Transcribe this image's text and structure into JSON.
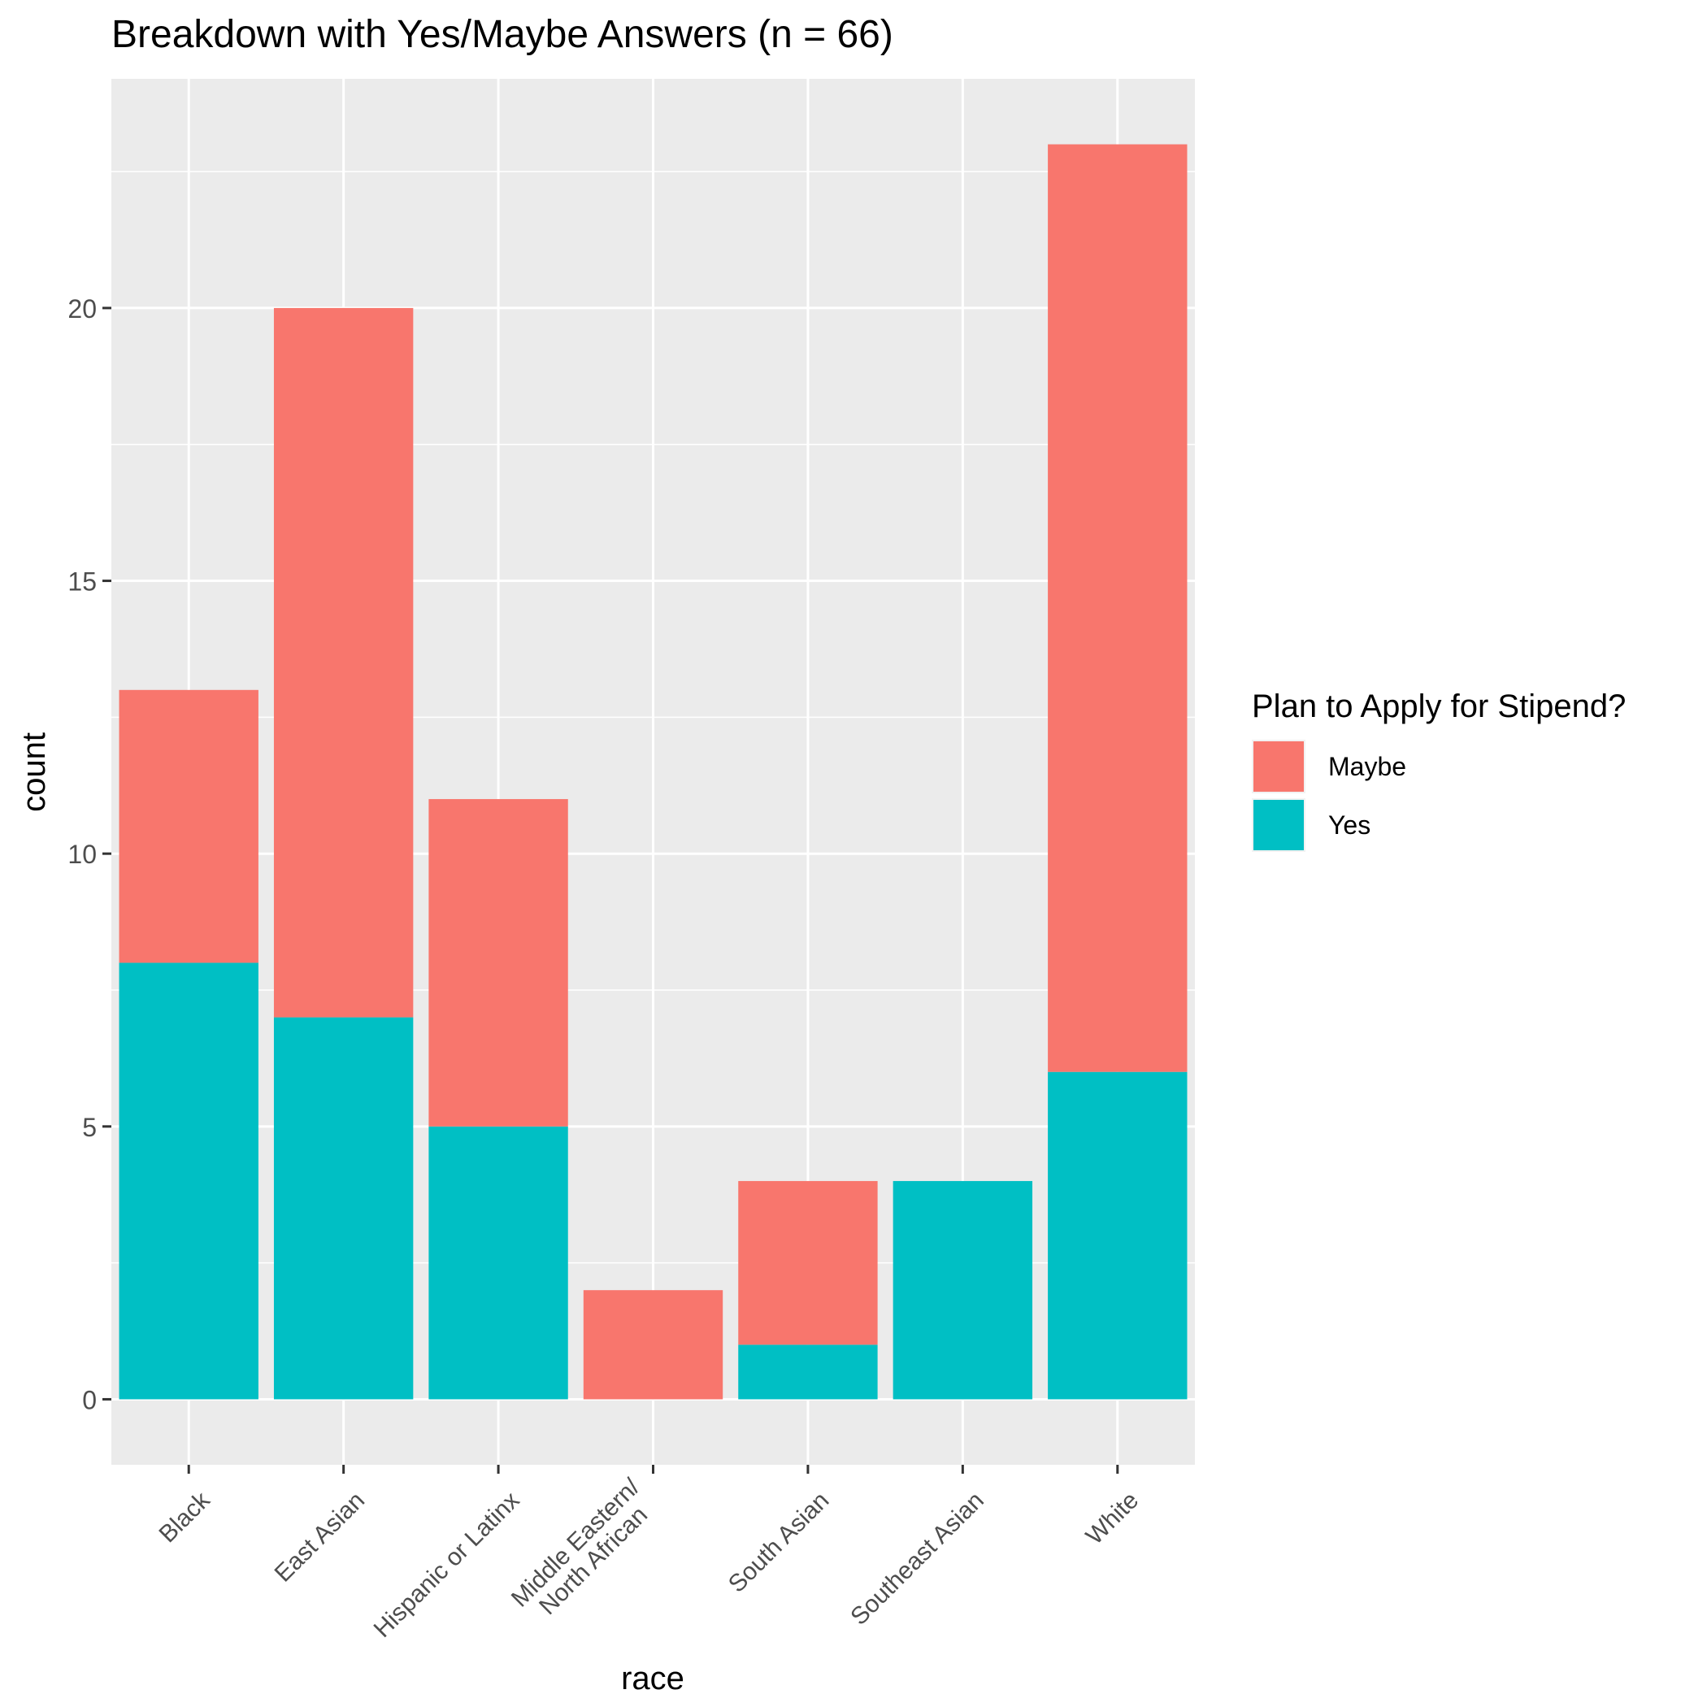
{
  "chart_data": {
    "type": "bar",
    "stacked": true,
    "title": "Breakdown with Yes/Maybe Answers (n = 66)",
    "xlabel": "race",
    "ylabel": "count",
    "ylim": [
      -1.2,
      24.2
    ],
    "yticks": [
      0,
      5,
      10,
      15,
      20
    ],
    "ytick_labels": [
      "0",
      "5",
      "10",
      "15",
      "20"
    ],
    "grid": true,
    "categories": [
      [
        "Black"
      ],
      [
        "East Asian"
      ],
      [
        "Hispanic or Latinx"
      ],
      [
        "Middle Eastern/",
        "North African"
      ],
      [
        "South Asian"
      ],
      [
        "Southeast Asian"
      ],
      [
        "White"
      ]
    ],
    "series": [
      {
        "name": "Yes",
        "color": "#00BFC4",
        "values": [
          8,
          7,
          5,
          0,
          1,
          4,
          6
        ]
      },
      {
        "name": "Maybe",
        "color": "#F8766D",
        "values": [
          5,
          13,
          6,
          2,
          3,
          0,
          17
        ]
      }
    ],
    "legend": {
      "title": "Plan to Apply for Stipend?",
      "position": "right",
      "items": [
        {
          "label": "Maybe",
          "color": "#F8766D"
        },
        {
          "label": "Yes",
          "color": "#00BFC4"
        }
      ]
    },
    "panel_background": "#EBEBEB"
  }
}
